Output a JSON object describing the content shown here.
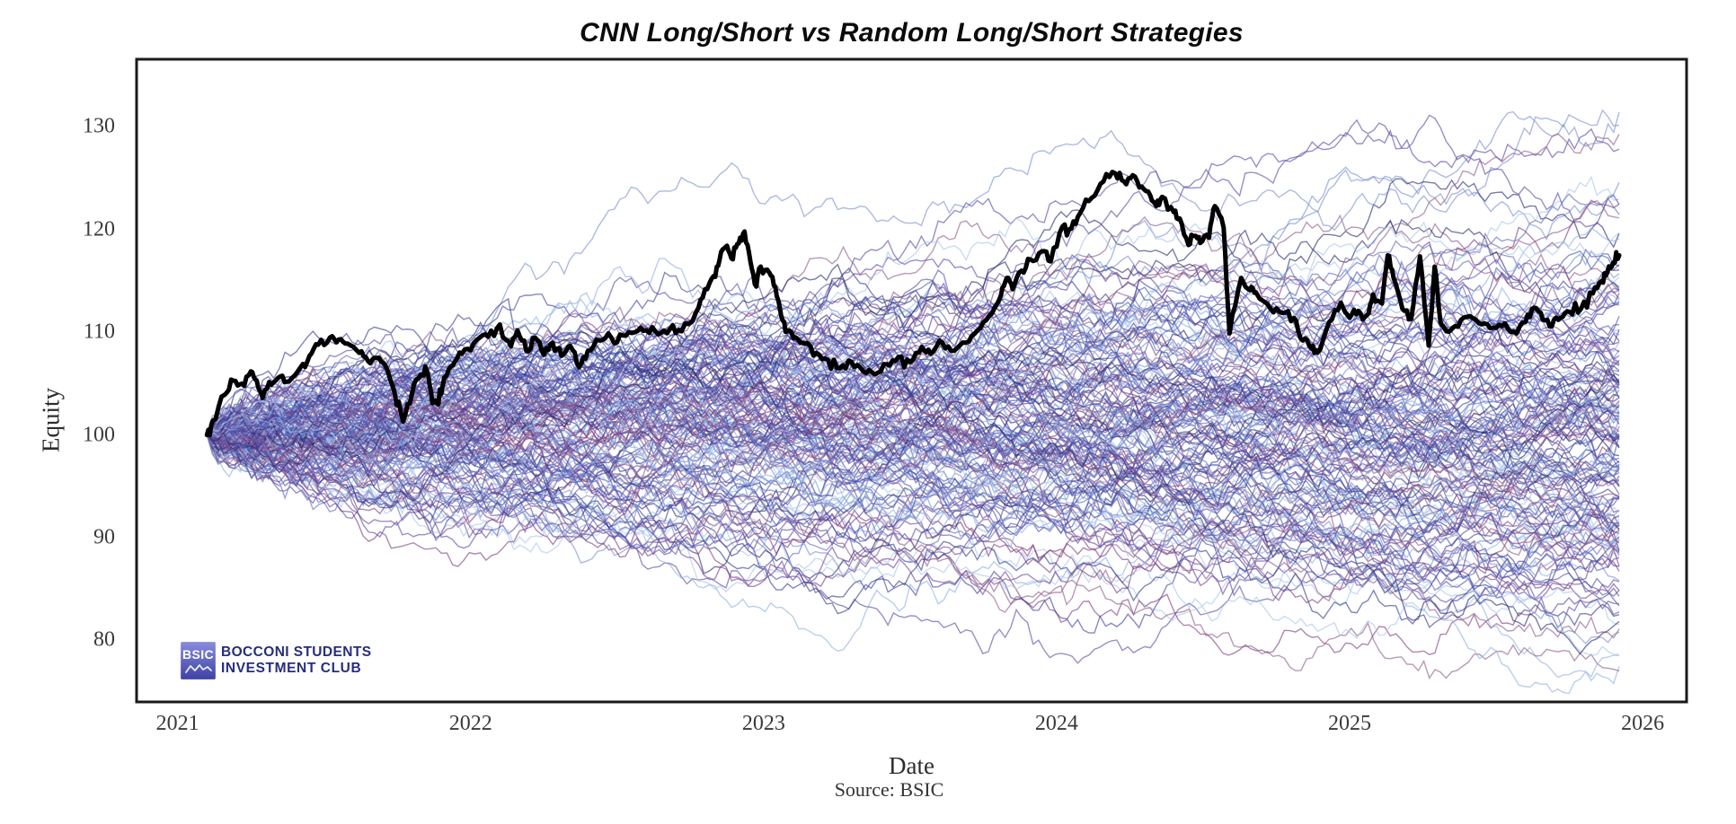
{
  "chart_data": {
    "type": "line",
    "title": "CNN Long/Short vs Random Long/Short Strategies",
    "xlabel": "Date",
    "ylabel": "Equity",
    "source_note": "Source: BSIC",
    "x_ticks": [
      2021,
      2022,
      2023,
      2024,
      2025,
      2026
    ],
    "y_ticks": [
      80,
      90,
      100,
      110,
      120,
      130
    ],
    "xlim": [
      2020.86,
      2026.15
    ],
    "ylim": [
      74,
      136.6
    ],
    "grid": false,
    "legend": "none",
    "x_start": 2021.1,
    "x_end": 2025.92,
    "start_value": 100,
    "cnn_series": {
      "name": "CNN Long/Short strategy",
      "color": "#000000",
      "line_width": 5,
      "points": [
        [
          2021.1,
          100.0
        ],
        [
          2021.12,
          101.4
        ],
        [
          2021.16,
          103.9
        ],
        [
          2021.19,
          105.3
        ],
        [
          2021.22,
          105.0
        ],
        [
          2021.25,
          106.2
        ],
        [
          2021.27,
          105.3
        ],
        [
          2021.29,
          103.6
        ],
        [
          2021.32,
          104.9
        ],
        [
          2021.35,
          105.7
        ],
        [
          2021.38,
          105.2
        ],
        [
          2021.42,
          106.6
        ],
        [
          2021.45,
          107.7
        ],
        [
          2021.48,
          108.8
        ],
        [
          2021.52,
          109.5
        ],
        [
          2021.55,
          109.3
        ],
        [
          2021.58,
          108.9
        ],
        [
          2021.62,
          108.0
        ],
        [
          2021.65,
          107.2
        ],
        [
          2021.68,
          107.5
        ],
        [
          2021.71,
          106.7
        ],
        [
          2021.74,
          104.2
        ],
        [
          2021.77,
          101.3
        ],
        [
          2021.8,
          104.0
        ],
        [
          2021.83,
          105.9
        ],
        [
          2021.85,
          106.3
        ],
        [
          2021.87,
          103.1
        ],
        [
          2021.89,
          103.0
        ],
        [
          2021.91,
          105.6
        ],
        [
          2021.94,
          106.8
        ],
        [
          2021.97,
          107.9
        ],
        [
          2022.01,
          108.9
        ],
        [
          2022.05,
          109.8
        ],
        [
          2022.09,
          110.4
        ],
        [
          2022.13,
          109.1
        ],
        [
          2022.16,
          110.2
        ],
        [
          2022.19,
          108.2
        ],
        [
          2022.22,
          109.5
        ],
        [
          2022.25,
          107.8
        ],
        [
          2022.28,
          109.0
        ],
        [
          2022.31,
          107.7
        ],
        [
          2022.34,
          108.7
        ],
        [
          2022.37,
          106.6
        ],
        [
          2022.4,
          108.2
        ],
        [
          2022.44,
          109.2
        ],
        [
          2022.48,
          109.5
        ],
        [
          2022.52,
          109.7
        ],
        [
          2022.56,
          110.0
        ],
        [
          2022.6,
          110.2
        ],
        [
          2022.64,
          109.8
        ],
        [
          2022.68,
          110.3
        ],
        [
          2022.72,
          110.1
        ],
        [
          2022.77,
          112.0
        ],
        [
          2022.8,
          114.2
        ],
        [
          2022.83,
          115.5
        ],
        [
          2022.85,
          117.1
        ],
        [
          2022.87,
          118.3
        ],
        [
          2022.89,
          117.2
        ],
        [
          2022.91,
          118.6
        ],
        [
          2022.93,
          119.6
        ],
        [
          2022.95,
          117.8
        ],
        [
          2022.97,
          114.7
        ],
        [
          2022.99,
          116.4
        ],
        [
          2023.02,
          115.8
        ],
        [
          2023.04,
          114.4
        ],
        [
          2023.06,
          111.6
        ],
        [
          2023.08,
          110.1
        ],
        [
          2023.11,
          109.5
        ],
        [
          2023.14,
          108.9
        ],
        [
          2023.18,
          108.0
        ],
        [
          2023.22,
          107.3
        ],
        [
          2023.26,
          106.5
        ],
        [
          2023.3,
          107.1
        ],
        [
          2023.34,
          106.2
        ],
        [
          2023.38,
          105.9
        ],
        [
          2023.42,
          106.9
        ],
        [
          2023.46,
          107.6
        ],
        [
          2023.5,
          107.1
        ],
        [
          2023.54,
          108.6
        ],
        [
          2023.57,
          107.9
        ],
        [
          2023.61,
          109.0
        ],
        [
          2023.65,
          108.2
        ],
        [
          2023.69,
          109.0
        ],
        [
          2023.73,
          110.2
        ],
        [
          2023.77,
          111.6
        ],
        [
          2023.81,
          113.6
        ],
        [
          2023.83,
          115.3
        ],
        [
          2023.85,
          114.2
        ],
        [
          2023.88,
          116.0
        ],
        [
          2023.91,
          117.1
        ],
        [
          2023.95,
          117.9
        ],
        [
          2023.98,
          116.9
        ],
        [
          2024.02,
          120.3
        ],
        [
          2024.05,
          120.1
        ],
        [
          2024.08,
          121.6
        ],
        [
          2024.12,
          123.1
        ],
        [
          2024.16,
          124.7
        ],
        [
          2024.2,
          125.5
        ],
        [
          2024.23,
          124.7
        ],
        [
          2024.26,
          125.3
        ],
        [
          2024.29,
          124.2
        ],
        [
          2024.32,
          123.3
        ],
        [
          2024.34,
          122.3
        ],
        [
          2024.36,
          123.2
        ],
        [
          2024.4,
          121.7
        ],
        [
          2024.42,
          121.1
        ],
        [
          2024.45,
          118.5
        ],
        [
          2024.47,
          119.4
        ],
        [
          2024.49,
          118.7
        ],
        [
          2024.52,
          119.2
        ],
        [
          2024.54,
          122.3
        ],
        [
          2024.57,
          120.2
        ],
        [
          2024.59,
          109.9
        ],
        [
          2024.63,
          115.3
        ],
        [
          2024.66,
          114.1
        ],
        [
          2024.68,
          113.9
        ],
        [
          2024.73,
          112.3
        ],
        [
          2024.77,
          111.9
        ],
        [
          2024.81,
          111.4
        ],
        [
          2024.84,
          109.2
        ],
        [
          2024.87,
          108.4
        ],
        [
          2024.89,
          108.0
        ],
        [
          2024.93,
          111.0
        ],
        [
          2024.97,
          112.9
        ],
        [
          2025.0,
          111.4
        ],
        [
          2025.03,
          112.1
        ],
        [
          2025.06,
          111.7
        ],
        [
          2025.08,
          113.7
        ],
        [
          2025.11,
          112.8
        ],
        [
          2025.13,
          117.5
        ],
        [
          2025.15,
          115.3
        ],
        [
          2025.18,
          112.3
        ],
        [
          2025.21,
          111.3
        ],
        [
          2025.24,
          117.4
        ],
        [
          2025.27,
          108.7
        ],
        [
          2025.29,
          116.4
        ],
        [
          2025.31,
          111.0
        ],
        [
          2025.33,
          110.1
        ],
        [
          2025.36,
          110.6
        ],
        [
          2025.4,
          111.5
        ],
        [
          2025.44,
          110.9
        ],
        [
          2025.48,
          110.4
        ],
        [
          2025.52,
          110.6
        ],
        [
          2025.56,
          110.1
        ],
        [
          2025.6,
          111.0
        ],
        [
          2025.63,
          112.4
        ],
        [
          2025.66,
          111.2
        ],
        [
          2025.69,
          110.6
        ],
        [
          2025.72,
          111.4
        ],
        [
          2025.75,
          112.0
        ],
        [
          2025.79,
          112.3
        ],
        [
          2025.83,
          113.8
        ],
        [
          2025.86,
          115.0
        ],
        [
          2025.88,
          115.9
        ],
        [
          2025.9,
          116.8
        ],
        [
          2025.92,
          117.5
        ]
      ]
    },
    "random_strategies": {
      "name": "Random Long/Short strategies",
      "count": 170,
      "start": 100,
      "steps": 253,
      "weekly_sigma": 0.66,
      "annual_drift_range": [
        -1.0,
        1.5
      ],
      "soft_floor": 79,
      "soft_ceiling": 134,
      "boundary_pull": 0.05,
      "seed": 20211,
      "opacity": 0.62,
      "line_width": 1.4,
      "end_value_range": [
        77,
        132
      ],
      "palette": [
        "#a9c7ea",
        "#8fb0e2",
        "#7b8fd2",
        "#5f6cc0",
        "#4a55ae",
        "#343a8e",
        "#262b72",
        "#5a4aa4",
        "#6f429b",
        "#7d3f7f",
        "#8d5c8a",
        "#3d3f9e"
      ]
    }
  },
  "plot_frame": {
    "border_color": "#1a1a1a",
    "background": "#ffffff"
  },
  "logo": {
    "badge_text": "BSIC",
    "line1": "BOCCONI STUDENTS",
    "line2": "INVESTMENT CLUB",
    "badge_color_top": "#888dde",
    "badge_color_bottom": "#3e41a2",
    "text_color": "#272d7e"
  }
}
